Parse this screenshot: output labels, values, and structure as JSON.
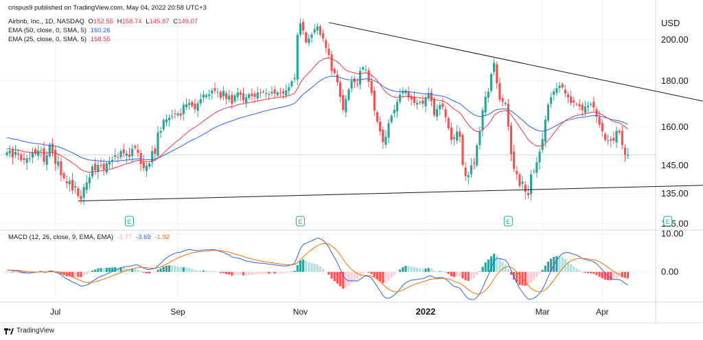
{
  "header": {
    "published": "crispus9 published on TradingView.com, May 04, 2022 20:58 UTC+3",
    "symbol": "Airbnb, Inc., 1D, NASDAQ",
    "ohlc": {
      "o_label": "O",
      "o": "152.55",
      "h_label": "H",
      "h": "158.74",
      "l_label": "L",
      "l": "145.87",
      "c_label": "C",
      "c": "149.07"
    },
    "ema50": {
      "label": "EMA (50, close, 0, SMA, 5)",
      "value": "160.26"
    },
    "ema25": {
      "label": "EMA (25, close, 0, SMA, 5)",
      "value": "158.55"
    },
    "macd": {
      "label": "MACD (12, 26, close, 9, EMA, EMA)",
      "hist": "-1.77",
      "macd": "-3.69",
      "signal": "-1.92"
    }
  },
  "footer": {
    "brand": "TradingView"
  },
  "colors": {
    "up": "#26a69a",
    "down": "#ef5350",
    "ema50": "#2962ff",
    "ema25": "#f23645",
    "macd": "#2962ff",
    "signal": "#ff6d00",
    "grid": "#f0f3fa",
    "trend": "#131722"
  },
  "chart_data": {
    "type": "candlestick",
    "title": "Airbnb, Inc., 1D, NASDAQ",
    "currency_label": "USD",
    "y_ticks": [
      "200.00",
      "180.00",
      "160.00",
      "145.00",
      "135.00",
      "125.00"
    ],
    "y_tick_values": [
      200,
      180,
      160,
      145,
      135,
      125
    ],
    "price_range": [
      123,
      213
    ],
    "last_price_line": 149.07,
    "x_labels": [
      "Jul",
      "Sep",
      "Nov",
      "2022",
      "Mar",
      "Apr"
    ],
    "x_label_index": [
      17,
      60,
      103,
      147,
      188,
      209
    ],
    "earnings_markers": {
      "label": "E",
      "index": [
        43,
        103,
        176,
        232
      ]
    },
    "trendlines": [
      {
        "name": "upper",
        "from": {
          "i": 113,
          "price": 209
        },
        "to": {
          "i": 252,
          "price": 169
        }
      },
      {
        "name": "lower",
        "from": {
          "i": 25,
          "price": 132.5
        },
        "to": {
          "i": 248,
          "price": 138
        }
      }
    ],
    "closes": [
      150,
      150.7,
      148.1,
      150.3,
      149.2,
      147.1,
      147.1,
      147.8,
      147.7,
      150.2,
      149.4,
      150.7,
      150.9,
      146.4,
      148.9,
      153,
      150,
      145.7,
      146.6,
      141.5,
      140.4,
      138.6,
      139.5,
      136.1,
      137.6,
      134.2,
      133,
      137.3,
      138.9,
      140.7,
      144.7,
      143.3,
      145.3,
      145,
      143.5,
      145.8,
      146.3,
      147.2,
      148.9,
      148.1,
      150.5,
      149.7,
      149.6,
      148.3,
      151.4,
      151.8,
      149.8,
      145.6,
      144.1,
      145,
      145.8,
      150.5,
      149.4,
      157.8,
      158.4,
      163,
      163.2,
      163.9,
      164.7,
      165.6,
      165.7,
      164.7,
      169.4,
      169.7,
      170.3,
      168.8,
      167.5,
      170,
      171.9,
      173.9,
      173.6,
      174,
      175.7,
      175.5,
      175.1,
      172.4,
      175.5,
      172,
      173.4,
      169.8,
      173.5,
      174.8,
      173.8,
      171.4,
      172.7,
      174,
      173.2,
      172.8,
      174.8,
      174.5,
      175.1,
      174.5,
      174,
      175.1,
      174.3,
      174.8,
      174.6,
      174.5,
      175.8,
      177.2,
      179.8,
      181.4,
      202.6,
      208.6,
      204.8,
      198.7,
      200.6,
      202.7,
      205.5,
      207,
      202.6,
      200.7,
      195.9,
      192.4,
      184.6,
      183.7,
      179.4,
      172.9,
      167.2,
      171.9,
      176.2,
      180.1,
      179.4,
      178.4,
      184.7,
      186.4,
      185.4,
      179.7,
      174.6,
      166.9,
      162.3,
      158.3,
      154,
      156.1,
      161.7,
      164.7,
      167.2,
      170.7,
      173.8,
      175.5,
      175.7,
      172.5,
      171.7,
      170.2,
      170.2,
      170.6,
      169.8,
      172.6,
      174.5,
      170.9,
      165,
      167.5,
      169.3,
      168.5,
      164.1,
      159.5,
      154.8,
      155.3,
      158.2,
      156.1,
      145.3,
      141.2,
      141.5,
      145.1,
      145.8,
      152.8,
      158.1,
      167.1,
      172.9,
      175.2,
      183.2,
      188.6,
      179,
      171.6,
      170.7,
      170.2,
      160.3,
      149.3,
      143.8,
      141.8,
      137.7,
      139.2,
      135.6,
      134.5,
      141.8,
      143.1,
      146.2,
      150.3,
      155.2,
      163.1,
      169.4,
      172.7,
      175.3,
      176.8,
      177.9,
      177.1,
      174.3,
      172.7,
      170.2,
      170.4,
      169.7,
      168.7,
      167,
      168.6,
      169.1,
      169.7,
      168.2,
      164.3,
      161,
      158.3,
      154.9,
      154.8,
      154.6,
      154.6,
      158.5,
      157.8,
      152.9,
      149.1,
      149.1
    ],
    "ema50_start": 156,
    "ema25_start": 151.5,
    "macd": {
      "y_ticks": [
        "10.00",
        "0.00"
      ],
      "y_tick_values": [
        10,
        0
      ],
      "range": [
        -8,
        11
      ]
    }
  }
}
